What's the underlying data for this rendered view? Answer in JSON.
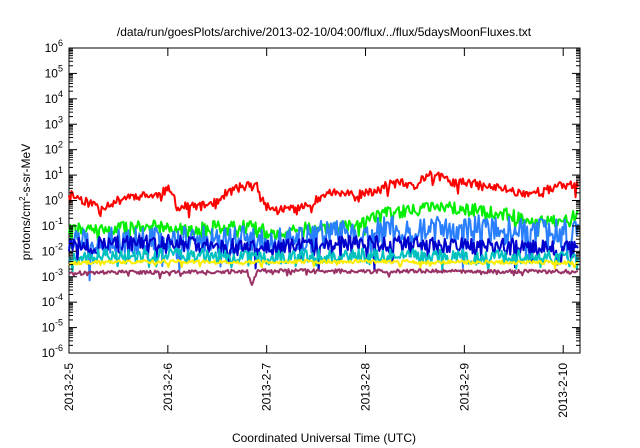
{
  "chart_data": {
    "type": "line",
    "title": "/data/run/goesPlots/archive/2013-02-10/04:00/flux/../flux/5daysMoonFluxes.txt",
    "xlabel": "Coordinated Universal Time (UTC)",
    "ylabel": "protons/cm2-s-sr-MeV",
    "ylabel_parts": {
      "pre": "protons/cm",
      "sup": "2",
      "post": "-s-sr-MeV"
    },
    "x_unit": "days",
    "x_ticks": [
      "2013-2-5",
      "2013-2-6",
      "2013-2-7",
      "2013-2-8",
      "2013-2-9",
      "2013-2-10"
    ],
    "xlim": [
      "2013-02-05T00:00",
      "2013-02-10T04:00"
    ],
    "y_scale": "log",
    "ylim": [
      1e-06,
      1000000.0
    ],
    "y_ticks": [
      {
        "base": "10",
        "exp": "-6"
      },
      {
        "base": "10",
        "exp": "-5"
      },
      {
        "base": "10",
        "exp": "-4"
      },
      {
        "base": "10",
        "exp": "-3"
      },
      {
        "base": "10",
        "exp": "-2"
      },
      {
        "base": "10",
        "exp": "-1"
      },
      {
        "base": "10",
        "exp": "0"
      },
      {
        "base": "10",
        "exp": "1"
      },
      {
        "base": "10",
        "exp": "2"
      },
      {
        "base": "10",
        "exp": "3"
      },
      {
        "base": "10",
        "exp": "4"
      },
      {
        "base": "10",
        "exp": "5"
      },
      {
        "base": "10",
        "exp": "6"
      }
    ],
    "grid": false,
    "legend": "none",
    "series": [
      {
        "color": "#ff0000",
        "points": [
          [
            0,
            2.0
          ],
          [
            0.2,
            0.8
          ],
          [
            0.35,
            0.6
          ],
          [
            0.5,
            1.0
          ],
          [
            0.6,
            1.5
          ],
          [
            0.75,
            1.5
          ],
          [
            0.9,
            1.6
          ],
          [
            1.0,
            2.8
          ],
          [
            1.05,
            1.5
          ],
          [
            1.1,
            0.5
          ],
          [
            1.2,
            0.6
          ],
          [
            1.35,
            0.6
          ],
          [
            1.5,
            1.0
          ],
          [
            1.6,
            2.0
          ],
          [
            1.7,
            3.0
          ],
          [
            1.8,
            4.0
          ],
          [
            1.9,
            3.5
          ],
          [
            1.95,
            1.0
          ],
          [
            2.0,
            0.6
          ],
          [
            2.1,
            0.4
          ],
          [
            2.2,
            0.5
          ],
          [
            2.35,
            0.5
          ],
          [
            2.5,
            1.0
          ],
          [
            2.6,
            2.0
          ],
          [
            2.75,
            2.0
          ],
          [
            2.9,
            1.5
          ],
          [
            3.0,
            2.0
          ],
          [
            3.1,
            2.0
          ],
          [
            3.2,
            4.0
          ],
          [
            3.35,
            5.0
          ],
          [
            3.5,
            3.0
          ],
          [
            3.55,
            6.0
          ],
          [
            3.65,
            12.0
          ],
          [
            3.7,
            10.0
          ],
          [
            3.8,
            7.0
          ],
          [
            3.9,
            5.0
          ],
          [
            4.0,
            5.0
          ],
          [
            4.1,
            4.5
          ],
          [
            4.2,
            3.5
          ],
          [
            4.4,
            3.0
          ],
          [
            4.55,
            2.0
          ],
          [
            4.7,
            2.0
          ],
          [
            4.8,
            2.5
          ],
          [
            4.9,
            3.0
          ],
          [
            5.0,
            4.0
          ],
          [
            5.15,
            4.5
          ]
        ],
        "noise": 0.35,
        "seed": 11
      },
      {
        "color": "#00ee00",
        "points": [
          [
            0,
            0.07
          ],
          [
            0.2,
            0.08
          ],
          [
            0.5,
            0.08
          ],
          [
            0.8,
            0.09
          ],
          [
            1.0,
            0.1
          ],
          [
            1.2,
            0.08
          ],
          [
            1.5,
            0.09
          ],
          [
            1.8,
            0.1
          ],
          [
            2.0,
            0.06
          ],
          [
            2.2,
            0.05
          ],
          [
            2.4,
            0.08
          ],
          [
            2.6,
            0.07
          ],
          [
            2.8,
            0.1
          ],
          [
            3.0,
            0.15
          ],
          [
            3.1,
            0.2
          ],
          [
            3.2,
            0.3
          ],
          [
            3.4,
            0.4
          ],
          [
            3.6,
            0.45
          ],
          [
            3.8,
            0.5
          ],
          [
            4.0,
            0.45
          ],
          [
            4.2,
            0.4
          ],
          [
            4.4,
            0.3
          ],
          [
            4.6,
            0.2
          ],
          [
            4.8,
            0.15
          ],
          [
            5.0,
            0.18
          ],
          [
            5.15,
            0.25
          ]
        ],
        "noise": 0.5,
        "seed": 22
      },
      {
        "color": "#2a7fff",
        "points": [
          [
            0,
            0.025
          ],
          [
            0.3,
            0.03
          ],
          [
            0.6,
            0.025
          ],
          [
            1.0,
            0.03
          ],
          [
            1.5,
            0.03
          ],
          [
            2.0,
            0.025
          ],
          [
            2.3,
            0.03
          ],
          [
            2.6,
            0.05
          ],
          [
            3.0,
            0.06
          ],
          [
            3.3,
            0.07
          ],
          [
            3.6,
            0.06
          ],
          [
            4.0,
            0.08
          ],
          [
            4.3,
            0.07
          ],
          [
            4.6,
            0.06
          ],
          [
            5.0,
            0.05
          ],
          [
            5.15,
            0.05
          ]
        ],
        "noise": 1.1,
        "seed": 33
      },
      {
        "color": "#0000cc",
        "points": [
          [
            0,
            0.015
          ],
          [
            0.5,
            0.018
          ],
          [
            1.0,
            0.02
          ],
          [
            1.5,
            0.016
          ],
          [
            2.0,
            0.015
          ],
          [
            2.5,
            0.015
          ],
          [
            3.0,
            0.02
          ],
          [
            3.5,
            0.018
          ],
          [
            4.0,
            0.015
          ],
          [
            4.5,
            0.015
          ],
          [
            5.0,
            0.012
          ],
          [
            5.15,
            0.012
          ]
        ],
        "noise": 0.7,
        "seed": 44
      },
      {
        "color": "#00c0c0",
        "points": [
          [
            0,
            0.006
          ],
          [
            1.0,
            0.007
          ],
          [
            2.0,
            0.006
          ],
          [
            3.0,
            0.007
          ],
          [
            4.0,
            0.006
          ],
          [
            5.15,
            0.006
          ]
        ],
        "noise": 0.55,
        "seed": 55
      },
      {
        "color": "#ffee00",
        "points": [
          [
            0,
            0.0035
          ],
          [
            1.0,
            0.004
          ],
          [
            2.0,
            0.0038
          ],
          [
            3.0,
            0.004
          ],
          [
            4.0,
            0.0037
          ],
          [
            5.15,
            0.0036
          ]
        ],
        "noise": 0.15,
        "seed": 66
      },
      {
        "color": "#993366",
        "points": [
          [
            0,
            0.0014
          ],
          [
            0.5,
            0.0015
          ],
          [
            1.0,
            0.0015
          ],
          [
            1.5,
            0.0015
          ],
          [
            1.8,
            0.0017
          ],
          [
            1.85,
            0.0004
          ],
          [
            1.9,
            0.0017
          ],
          [
            2.5,
            0.0017
          ],
          [
            3.0,
            0.0016
          ],
          [
            3.5,
            0.0017
          ],
          [
            4.0,
            0.0016
          ],
          [
            4.5,
            0.0016
          ],
          [
            5.15,
            0.0016
          ]
        ],
        "noise": 0.15,
        "seed": 77
      }
    ]
  }
}
